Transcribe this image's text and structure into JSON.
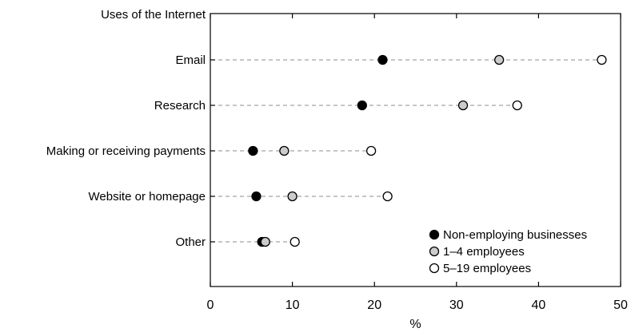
{
  "chart_data": {
    "type": "scatter",
    "title": "",
    "ylabel": "Uses of the Internet",
    "xlabel": "%",
    "xlim": [
      0,
      50
    ],
    "xticks": [
      0,
      10,
      20,
      30,
      40,
      50
    ],
    "grid": false,
    "categories": [
      "Email",
      "Research",
      "Making or receiving payments",
      "Website or homepage",
      "Other"
    ],
    "series": [
      {
        "name": "Non-employing businesses",
        "color": "#000000",
        "values": [
          21.0,
          18.5,
          5.2,
          5.6,
          6.3
        ]
      },
      {
        "name": "1–4 employees",
        "color": "#cccccc",
        "values": [
          35.2,
          30.8,
          9.0,
          10.0,
          6.7
        ]
      },
      {
        "name": "5–19 employees",
        "color": "#ffffff",
        "values": [
          47.7,
          37.4,
          19.6,
          21.6,
          10.3
        ]
      }
    ],
    "legend_position": "bottom-right"
  }
}
